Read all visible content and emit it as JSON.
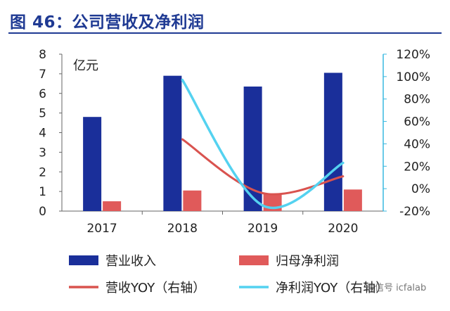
{
  "title": "图 46：公司营收及净利润",
  "watermark": "微信号 icfalab",
  "chart_data": {
    "type": "bar",
    "categories": [
      "2017",
      "2018",
      "2019",
      "2020"
    ],
    "unit_label": "亿元",
    "y_left": {
      "min": 0,
      "max": 8,
      "ticks": [
        "0",
        "1",
        "2",
        "3",
        "4",
        "5",
        "6",
        "7",
        "8"
      ]
    },
    "y_right": {
      "min": -20,
      "max": 120,
      "ticks": [
        "-20%",
        "0%",
        "20%",
        "40%",
        "60%",
        "80%",
        "100%",
        "120%"
      ]
    },
    "series": [
      {
        "name": "营业收入",
        "kind": "bar",
        "axis": "left",
        "color": "#1a2f9a",
        "values": [
          4.8,
          6.9,
          6.35,
          7.05
        ]
      },
      {
        "name": "归母净利润",
        "kind": "bar",
        "axis": "left",
        "color": "#e05a5a",
        "values": [
          0.5,
          1.05,
          0.9,
          1.1
        ]
      },
      {
        "name": "营收YOY（右轴）",
        "kind": "line",
        "axis": "right",
        "color": "#d9534f",
        "values": [
          null,
          44,
          -4,
          11
        ]
      },
      {
        "name": "净利润YOY（右轴）",
        "kind": "line",
        "axis": "right",
        "color": "#54d2f0",
        "values": [
          null,
          97,
          -15,
          23
        ]
      }
    ],
    "legend_position": "bottom",
    "grid": false
  }
}
